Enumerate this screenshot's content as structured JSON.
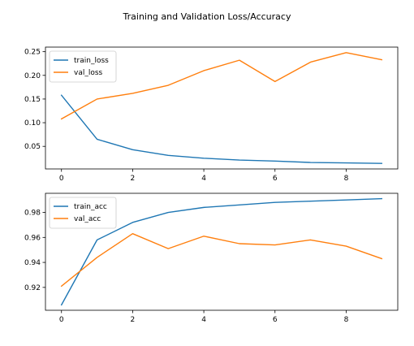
{
  "figure": {
    "title": "Training and Validation Loss/Accuracy"
  },
  "chart_data": [
    {
      "type": "line",
      "x": [
        0,
        1,
        2,
        3,
        4,
        5,
        6,
        7,
        8,
        9
      ],
      "series": [
        {
          "name": "train_loss",
          "color": "#1f77b4",
          "values": [
            0.158,
            0.065,
            0.043,
            0.031,
            0.025,
            0.021,
            0.019,
            0.016,
            0.015,
            0.014
          ]
        },
        {
          "name": "val_loss",
          "color": "#ff7f0e",
          "values": [
            0.108,
            0.15,
            0.162,
            0.179,
            0.21,
            0.232,
            0.187,
            0.228,
            0.248,
            0.233
          ]
        }
      ],
      "xticks": [
        0,
        2,
        4,
        6,
        8
      ],
      "yticks": [
        0.05,
        0.1,
        0.15,
        0.2,
        0.25
      ],
      "ytick_labels": [
        "0.05",
        "0.10",
        "0.15",
        "0.20",
        "0.25"
      ],
      "xlim": [
        -0.45,
        9.45
      ],
      "ylim": [
        0.0023,
        0.2597
      ],
      "legend": "top-left",
      "grid": false
    },
    {
      "type": "line",
      "x": [
        0,
        1,
        2,
        3,
        4,
        5,
        6,
        7,
        8,
        9
      ],
      "series": [
        {
          "name": "train_acc",
          "color": "#1f77b4",
          "values": [
            0.906,
            0.958,
            0.972,
            0.98,
            0.984,
            0.986,
            0.988,
            0.989,
            0.99,
            0.991
          ]
        },
        {
          "name": "val_acc",
          "color": "#ff7f0e",
          "values": [
            0.921,
            0.944,
            0.963,
            0.951,
            0.961,
            0.955,
            0.954,
            0.958,
            0.953,
            0.943
          ]
        }
      ],
      "xticks": [
        0,
        2,
        4,
        6,
        8
      ],
      "yticks": [
        0.92,
        0.94,
        0.96,
        0.98
      ],
      "ytick_labels": [
        "0.92",
        "0.94",
        "0.96",
        "0.98"
      ],
      "xlim": [
        -0.45,
        9.45
      ],
      "ylim": [
        0.9017,
        0.9953
      ],
      "legend": "top-left",
      "grid": false
    }
  ]
}
